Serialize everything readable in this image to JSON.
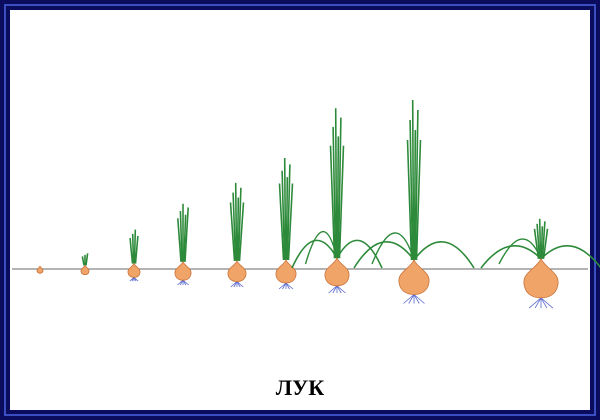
{
  "title": "ЛУК",
  "colors": {
    "border": "#0c0c5e",
    "border_inner": "#3a4fc0",
    "bulb": "#f0a468",
    "bulb_edge": "#c8743c",
    "leaf": "#2d8a3a",
    "root": "#5a6ad0",
    "ground": "#888888"
  },
  "icons": [
    "onion-growth-illustration"
  ]
}
